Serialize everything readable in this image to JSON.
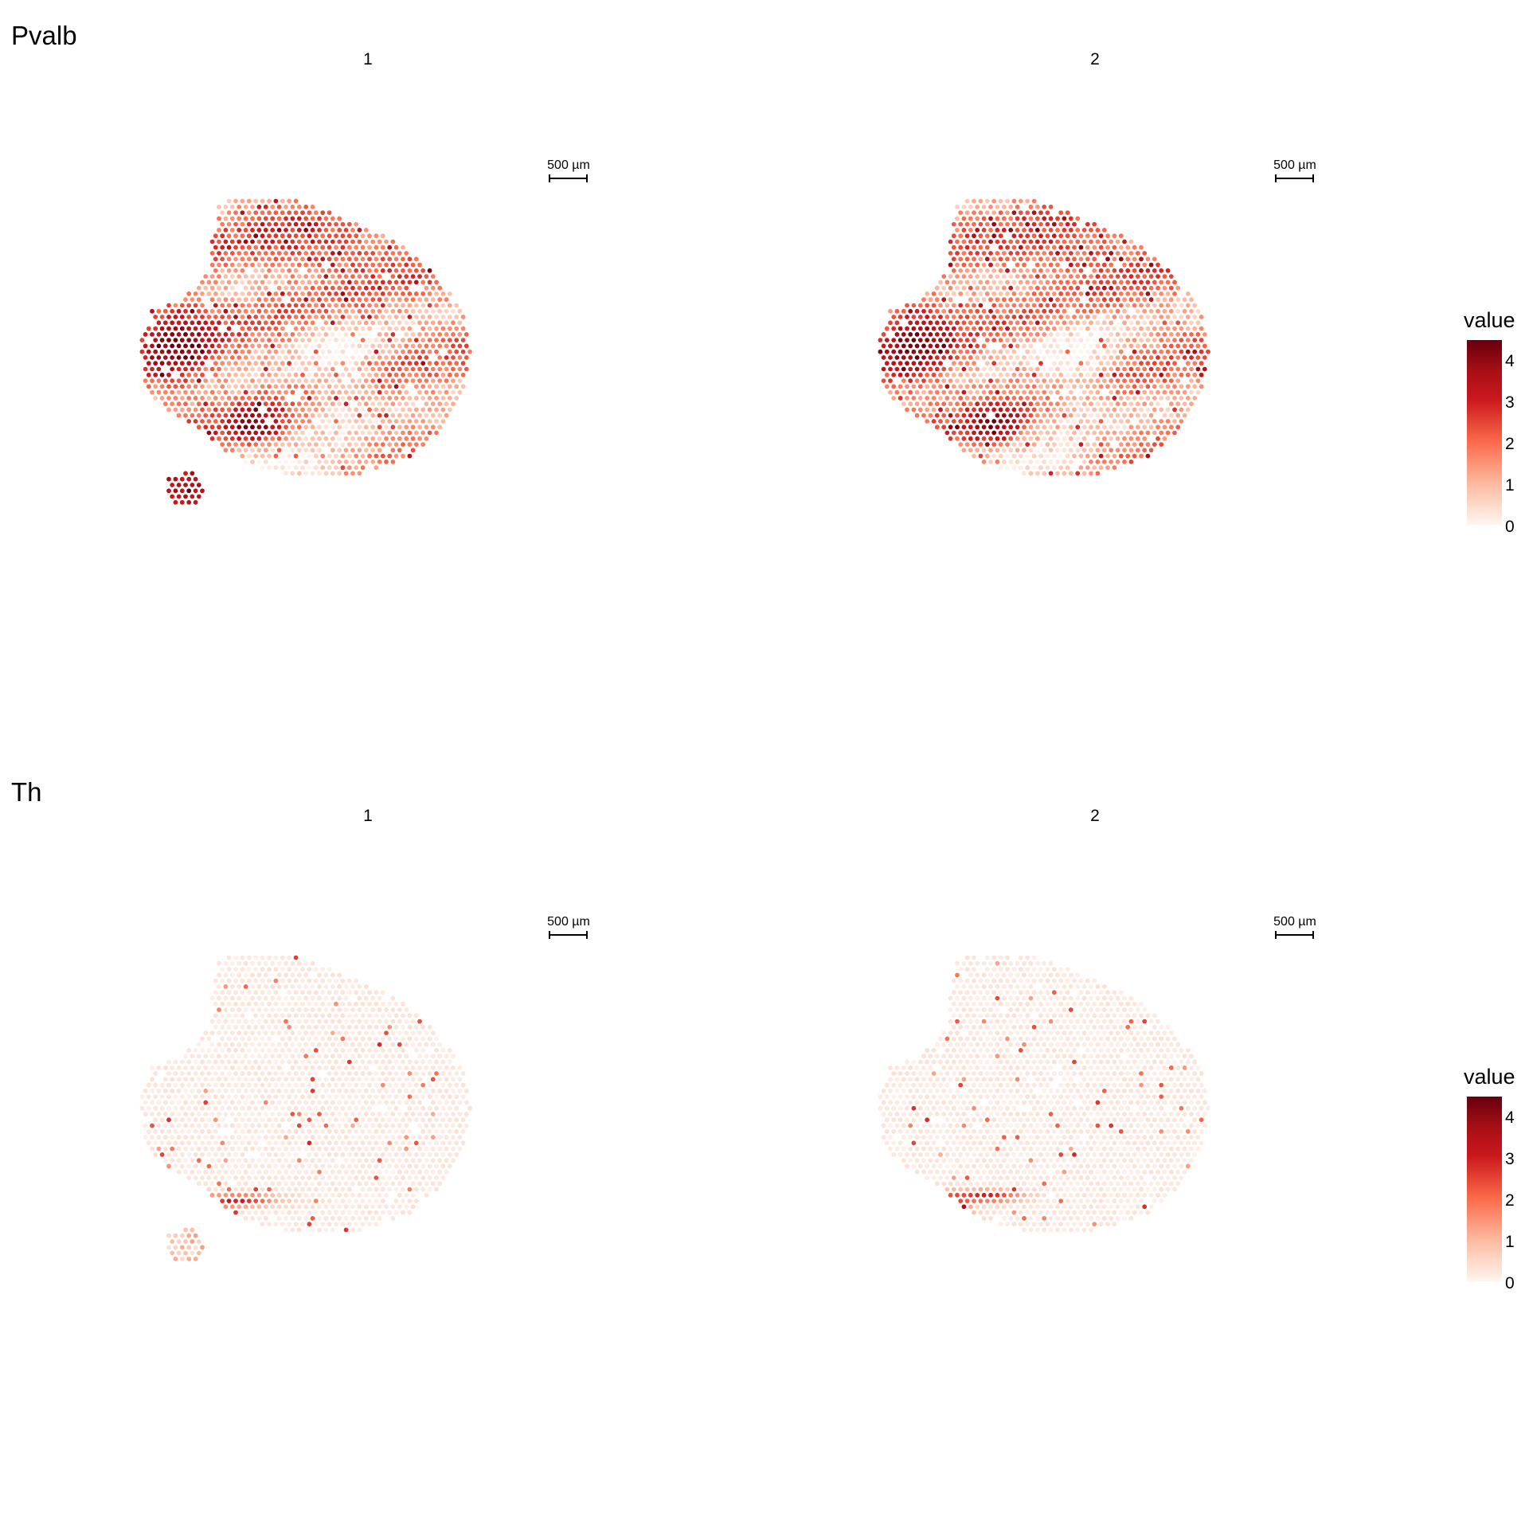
{
  "chart_data": [
    {
      "type": "scatter",
      "title": "Pvalb",
      "facets": [
        {
          "label": "1",
          "scalebar_label": "500 µm"
        },
        {
          "label": "2",
          "scalebar_label": "500 µm"
        }
      ],
      "color_scale": {
        "title": "value",
        "range": [
          0,
          4.4
        ],
        "ticks": [
          "0",
          "1",
          "2",
          "3",
          "4"
        ],
        "colors": [
          "#fff5f0",
          "#fcbba1",
          "#fb6a4a",
          "#cb181d",
          "#a50f15",
          "#67000d"
        ]
      }
    },
    {
      "type": "scatter",
      "title": "Th",
      "facets": [
        {
          "label": "1",
          "scalebar_label": "500 µm"
        },
        {
          "label": "2",
          "scalebar_label": "500 µm"
        }
      ],
      "color_scale": {
        "title": "value",
        "range": [
          0,
          4.4
        ],
        "ticks": [
          "0",
          "1",
          "2",
          "3",
          "4"
        ],
        "colors": [
          "#fff5f0",
          "#fcbba1",
          "#fb6a4a",
          "#cb181d",
          "#a50f15",
          "#67000d"
        ]
      }
    }
  ]
}
